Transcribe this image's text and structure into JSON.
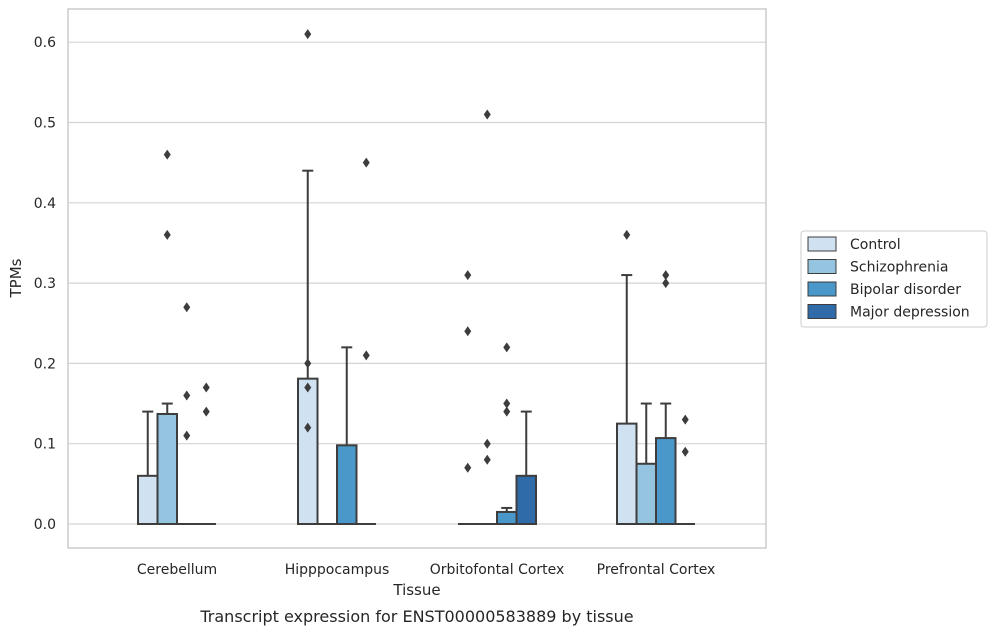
{
  "chart_data": {
    "type": "bar",
    "title": "",
    "caption": "Transcript expression for ENST00000583889 by tissue",
    "xlabel": "Tissue",
    "ylabel": "TPMs",
    "ylim": [
      -0.03,
      0.64
    ],
    "yticks": [
      "0.0",
      "0.1",
      "0.2",
      "0.3",
      "0.4",
      "0.5",
      "0.6"
    ],
    "grid": "horizontal",
    "legend_position": "right",
    "categories": [
      "Cerebellum",
      "Hipppocampus",
      "Orbitofontal Cortex",
      "Prefrontal Cortex"
    ],
    "series": [
      {
        "name": "Control",
        "color": "#d0e1f2",
        "values": [
          0.06,
          0.181,
          0.0,
          0.125
        ],
        "whiskers": [
          0.14,
          0.44,
          0.0,
          0.31
        ],
        "outliers": [
          [],
          [
            0.61,
            0.2,
            0.17,
            0.12
          ],
          [
            0.31,
            0.24,
            0.07
          ],
          [
            0.36
          ]
        ]
      },
      {
        "name": "Schizophrenia",
        "color": "#94c4df",
        "values": [
          0.137,
          0.0,
          0.0,
          0.075
        ],
        "whiskers": [
          0.15,
          0.0,
          0.0,
          0.15
        ],
        "outliers": [
          [
            0.46,
            0.36
          ],
          [],
          [
            0.51,
            0.1,
            0.08
          ],
          []
        ]
      },
      {
        "name": "Bipolar disorder",
        "color": "#4a98c9",
        "values": [
          0.0,
          0.098,
          0.015,
          0.107
        ],
        "whiskers": [
          0.0,
          0.22,
          0.02,
          0.15
        ],
        "outliers": [
          [
            0.27,
            0.16,
            0.11
          ],
          [],
          [
            0.22,
            0.15,
            0.14
          ],
          [
            0.31,
            0.3
          ]
        ]
      },
      {
        "name": "Major depression",
        "color": "#2e6ba8",
        "values": [
          0.0,
          0.0,
          0.06,
          0.0
        ],
        "whiskers": [
          0.0,
          0.0,
          0.14,
          0.0
        ],
        "outliers": [
          [
            0.17,
            0.14
          ],
          [
            0.45,
            0.21
          ],
          [],
          [
            0.13,
            0.09
          ]
        ]
      }
    ]
  }
}
